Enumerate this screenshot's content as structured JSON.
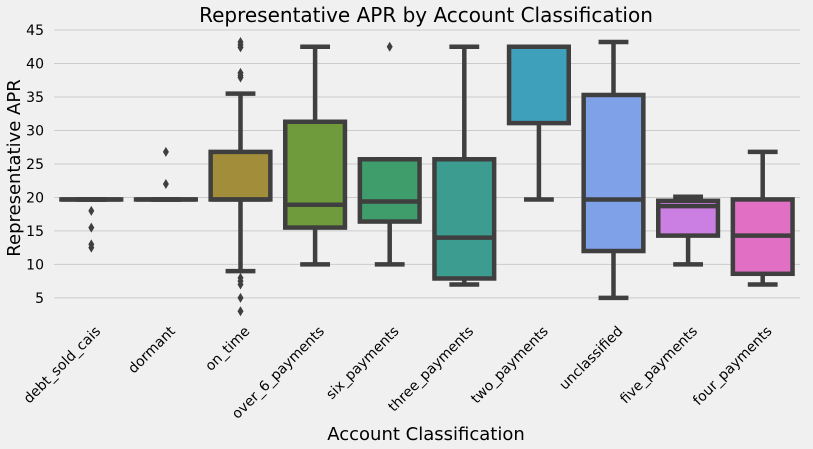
{
  "chart_data": {
    "type": "box",
    "title": "Representative APR by Account Classification",
    "xlabel": "Account Classification",
    "ylabel": "Representative APR",
    "ylim": [
      2,
      45
    ],
    "yticks": [
      5,
      10,
      15,
      20,
      25,
      30,
      35,
      40,
      45
    ],
    "grid": true,
    "categories": [
      "debt_sold_cais",
      "dormant",
      "on_time",
      "over_6_payments",
      "six_payments",
      "three_payments",
      "two_payments",
      "unclassified",
      "five_payments",
      "four_payments"
    ],
    "colors": [
      "#d9d99e",
      "#b0b0b0",
      "#a28e3a",
      "#6f9b3c",
      "#3e9d6b",
      "#3b9c8f",
      "#3ea0bb",
      "#7fa1e8",
      "#cc7fe2",
      "#e170c4"
    ],
    "boxes": [
      {
        "q1": 19.7,
        "median": 19.7,
        "q3": 19.7,
        "whislo": 19.7,
        "whishi": 19.7,
        "fliers": [
          18.0,
          15.5,
          13.0,
          12.5
        ]
      },
      {
        "q1": 19.7,
        "median": 19.7,
        "q3": 19.7,
        "whislo": 19.7,
        "whishi": 19.7,
        "fliers": [
          26.8,
          22.0
        ]
      },
      {
        "q1": 19.7,
        "median": 19.7,
        "q3": 26.8,
        "whislo": 9.0,
        "whishi": 35.5,
        "fliers": [
          43.2,
          42.8,
          42.4,
          38.6,
          38.2,
          37.9,
          8.0,
          7.5,
          7.0,
          5.0,
          3.0
        ]
      },
      {
        "q1": 15.5,
        "median": 18.9,
        "q3": 31.3,
        "whislo": 10.0,
        "whishi": 42.5,
        "fliers": []
      },
      {
        "q1": 16.4,
        "median": 19.4,
        "q3": 25.7,
        "whislo": 10.0,
        "whishi": 25.7,
        "fliers": [
          42.5
        ]
      },
      {
        "q1": 7.9,
        "median": 14.0,
        "q3": 25.7,
        "whislo": 7.0,
        "whishi": 42.5,
        "fliers": []
      },
      {
        "q1": 31.1,
        "median": 42.5,
        "q3": 42.5,
        "whislo": 19.7,
        "whishi": 42.5,
        "fliers": []
      },
      {
        "q1": 12.0,
        "median": 19.7,
        "q3": 35.3,
        "whislo": 5.0,
        "whishi": 43.2,
        "fliers": []
      },
      {
        "q1": 14.3,
        "median": 18.7,
        "q3": 19.5,
        "whislo": 10.0,
        "whishi": 20.1,
        "fliers": []
      },
      {
        "q1": 8.6,
        "median": 14.3,
        "q3": 19.7,
        "whislo": 7.0,
        "whishi": 26.8,
        "fliers": []
      }
    ]
  }
}
